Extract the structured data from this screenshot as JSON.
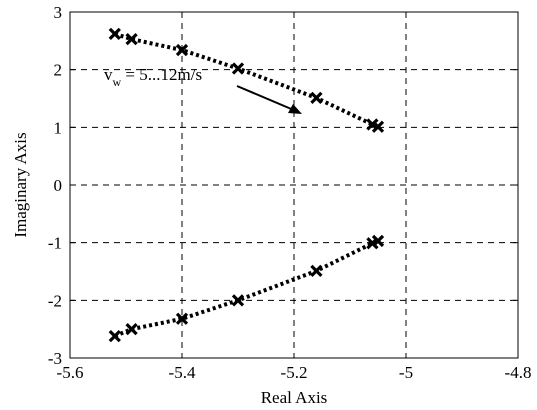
{
  "chart_data": {
    "type": "scatter",
    "xlabel": "Real Axis",
    "ylabel": "Imaginary Axis",
    "xlim": [
      -5.6,
      -4.8
    ],
    "ylim": [
      -3,
      3
    ],
    "grid": true,
    "xticks": [
      -5.6,
      -5.4,
      -5.2,
      -5.0,
      -4.8
    ],
    "xtick_labels": [
      "-5.6",
      "-5.4",
      "-5.2",
      "-5",
      "-4.8"
    ],
    "yticks": [
      -3,
      -2,
      -1,
      0,
      1,
      2,
      3
    ],
    "ytick_labels": [
      "-3",
      "-2",
      "-1",
      "0",
      "1",
      "2",
      "3"
    ],
    "series": [
      {
        "x": [
          -5.52,
          -5.49,
          -5.4,
          -5.3,
          -5.16,
          -5.06,
          -5.05
        ],
        "y": [
          2.62,
          2.53,
          2.34,
          2.02,
          1.51,
          1.05,
          1.01
        ]
      },
      {
        "x": [
          -5.52,
          -5.49,
          -5.4,
          -5.3,
          -5.16,
          -5.06,
          -5.05
        ],
        "y": [
          -2.62,
          -2.5,
          -2.32,
          -2.0,
          -1.49,
          -1.01,
          -0.97
        ]
      }
    ],
    "annotation": {
      "text_main": "v",
      "text_sub": "w",
      "text_rest": " = 5...12m/s"
    }
  }
}
